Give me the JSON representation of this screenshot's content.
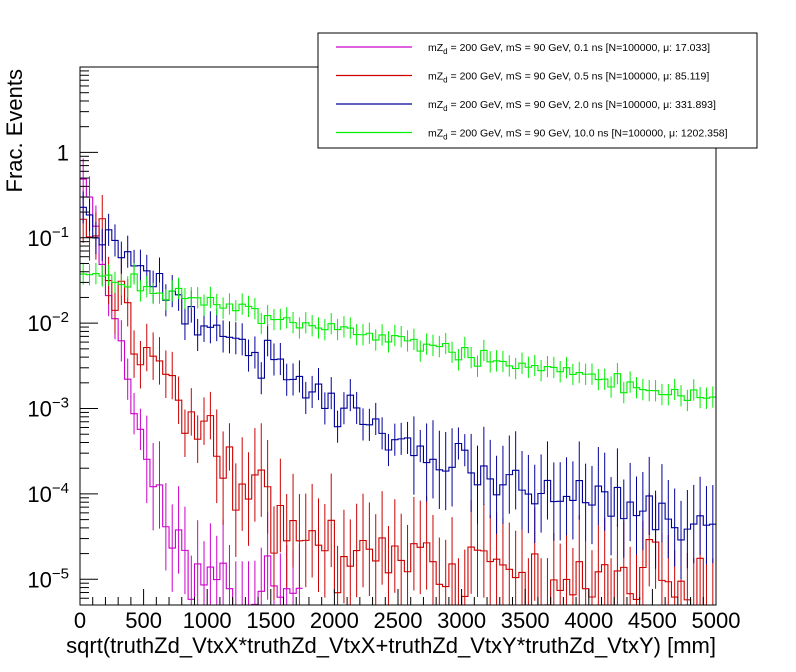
{
  "chart_data": {
    "type": "step-histogram",
    "xlabel": "sqrt(truthZd_VtxX*truthZd_VtxX+truthZd_VtxY*truthZd_VtxY) [mm]",
    "ylabel": "Frac. Events",
    "xlim": [
      0,
      5000
    ],
    "ylim": [
      5e-06,
      10
    ],
    "yscale": "log",
    "bin_width": 50,
    "x_ticks": [
      "0",
      "500",
      "1000",
      "1500",
      "2000",
      "2500",
      "3000",
      "3500",
      "4000",
      "4500",
      "5000"
    ],
    "x_tick_values": [
      0,
      500,
      1000,
      1500,
      2000,
      2500,
      3000,
      3500,
      4000,
      4500,
      5000
    ],
    "y_ticks": [
      {
        "value": 1,
        "base": "1",
        "exp": ""
      },
      {
        "value": 0.1,
        "base": "10",
        "exp": "−1"
      },
      {
        "value": 0.01,
        "base": "10",
        "exp": "−2"
      },
      {
        "value": 0.001,
        "base": "10",
        "exp": "−3"
      },
      {
        "value": 0.0001,
        "base": "10",
        "exp": "−4"
      },
      {
        "value": 1e-05,
        "base": "10",
        "exp": "−5"
      }
    ],
    "legend_position": "top-right",
    "series": [
      {
        "name": "0.1 ns",
        "label": "mZd = 200 GeV, mS = 90 GeV, 0.1 ns [N=100000, μ: 17.033]",
        "label_pre": "mZ",
        "label_sub": "d",
        "label_post": " = 200 GeV, mS = 90 GeV, 0.1 ns [N=100000, μ: 17.033]",
        "color": "#cc00cc",
        "anchors": [
          [
            25,
            0.9
          ],
          [
            75,
            0.35
          ],
          [
            150,
            0.09
          ],
          [
            250,
            0.02
          ],
          [
            350,
            0.004
          ],
          [
            450,
            0.0008
          ],
          [
            550,
            0.00022
          ],
          [
            650,
            5e-05
          ],
          [
            750,
            2e-05
          ],
          [
            850,
            1e-05
          ],
          [
            1000,
            8e-06
          ],
          [
            1750,
            6e-06
          ]
        ],
        "x_end": 1750,
        "noise": 0.18,
        "seed": 11
      },
      {
        "name": "0.5 ns",
        "label": "mZd = 200 GeV, mS = 90 GeV, 0.5 ns [N=100000, μ: 85.119]",
        "label_pre": "mZ",
        "label_sub": "d",
        "label_post": " = 200 GeV, mS = 90 GeV, 0.5 ns [N=100000, μ: 85.119]",
        "color": "#cc0000",
        "anchors": [
          [
            25,
            0.5
          ],
          [
            75,
            0.2
          ],
          [
            150,
            0.1
          ],
          [
            250,
            0.035
          ],
          [
            350,
            0.016
          ],
          [
            500,
            0.006
          ],
          [
            700,
            0.0018
          ],
          [
            900,
            0.0006
          ],
          [
            1100,
            0.00028
          ],
          [
            1300,
            0.00012
          ],
          [
            1500,
            6e-05
          ],
          [
            2000,
            2e-05
          ],
          [
            3000,
            1e-05
          ],
          [
            5000,
            8e-06
          ]
        ],
        "x_end": 5000,
        "noise": 0.22,
        "seed": 23
      },
      {
        "name": "2.0 ns",
        "label": "mZd = 200 GeV, mS = 90 GeV, 2.0 ns [N=100000, μ: 331.893]",
        "label_pre": "mZ",
        "label_sub": "d",
        "label_post": " = 200 GeV, mS = 90 GeV, 2.0 ns [N=100000, μ: 331.893]",
        "color": "#000099",
        "anchors": [
          [
            25,
            0.19
          ],
          [
            200,
            0.1
          ],
          [
            400,
            0.06
          ],
          [
            600,
            0.03
          ],
          [
            800,
            0.017
          ],
          [
            1000,
            0.011
          ],
          [
            1200,
            0.0065
          ],
          [
            1400,
            0.0038
          ],
          [
            1600,
            0.0025
          ],
          [
            1800,
            0.0016
          ],
          [
            2000,
            0.001
          ],
          [
            2200,
            0.0009
          ],
          [
            2400,
            0.0005
          ],
          [
            2600,
            0.00045
          ],
          [
            2800,
            0.00025
          ],
          [
            3000,
            0.00018
          ],
          [
            3500,
            0.00013
          ],
          [
            4000,
            9e-05
          ],
          [
            4500,
            6e-05
          ],
          [
            5000,
            4e-05
          ]
        ],
        "x_end": 5000,
        "noise": 0.12,
        "seed": 37
      },
      {
        "name": "10.0 ns",
        "label": "mZd = 200 GeV, mS = 90 GeV, 10.0 ns [N=100000, μ: 1202.358]",
        "label_pre": "mZ",
        "label_sub": "d",
        "label_post": " = 200 GeV, mS = 90 GeV, 10.0 ns [N=100000, μ: 1202.358]",
        "color": "#00ee00",
        "anchors": [
          [
            25,
            0.042
          ],
          [
            500,
            0.027
          ],
          [
            1000,
            0.018
          ],
          [
            1500,
            0.012
          ],
          [
            2000,
            0.0085
          ],
          [
            2500,
            0.006
          ],
          [
            3000,
            0.0043
          ],
          [
            3500,
            0.0032
          ],
          [
            4000,
            0.0024
          ],
          [
            4500,
            0.0017
          ],
          [
            5000,
            0.0013
          ]
        ],
        "x_end": 5000,
        "noise": 0.05,
        "seed": 53
      }
    ]
  }
}
